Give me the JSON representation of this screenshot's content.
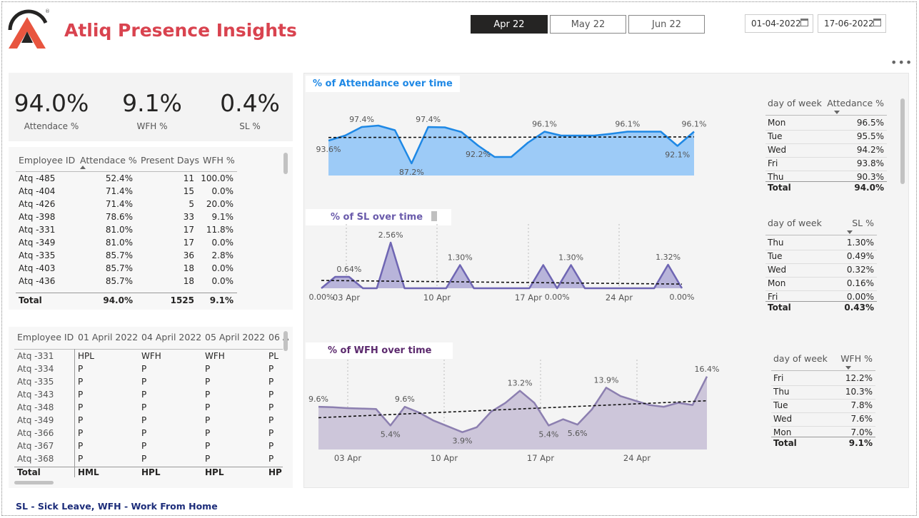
{
  "header": {
    "title": "Atliq Presence Insights"
  },
  "months": [
    {
      "label": "Apr 22",
      "active": true
    },
    {
      "label": "May 22",
      "active": false
    },
    {
      "label": "Jun 22",
      "active": false
    }
  ],
  "dates": {
    "start": "01-04-2022",
    "end": "17-06-2022"
  },
  "kpis": [
    {
      "value": "94.0%",
      "label": "Attendace %"
    },
    {
      "value": "9.1%",
      "label": "WFH %"
    },
    {
      "value": "0.4%",
      "label": "SL %"
    }
  ],
  "emp_table": {
    "headers": [
      "Employee ID",
      "Attendace %",
      "Present Days",
      "WFH %"
    ],
    "rows": [
      [
        "Atq -485",
        "52.4%",
        "11",
        "100.0%"
      ],
      [
        "Atq -404",
        "71.4%",
        "15",
        "0.0%"
      ],
      [
        "Atq -426",
        "71.4%",
        "5",
        "20.0%"
      ],
      [
        "Atq -398",
        "78.6%",
        "33",
        "9.1%"
      ],
      [
        "Atq -331",
        "81.0%",
        "17",
        "11.8%"
      ],
      [
        "Atq -349",
        "81.0%",
        "17",
        "0.0%"
      ],
      [
        "Atq -335",
        "85.7%",
        "36",
        "2.8%"
      ],
      [
        "Atq -403",
        "85.7%",
        "18",
        "0.0%"
      ],
      [
        "Atq -436",
        "85.7%",
        "18",
        "0.0%"
      ]
    ],
    "total": [
      "Total",
      "94.0%",
      "1525",
      "9.1%"
    ]
  },
  "matrix": {
    "headers": [
      "Employee ID",
      "01 April 2022",
      "04 April 2022",
      "05 April 2022",
      "06 A"
    ],
    "rows": [
      [
        "Atq -331",
        "HPL",
        "WFH",
        "WFH",
        "PL"
      ],
      [
        "Atq -334",
        "P",
        "P",
        "P",
        "P"
      ],
      [
        "Atq -335",
        "P",
        "P",
        "P",
        "P"
      ],
      [
        "Atq -343",
        "P",
        "P",
        "P",
        "P"
      ],
      [
        "Atq -348",
        "P",
        "P",
        "P",
        "P"
      ],
      [
        "Atq -349",
        "P",
        "P",
        "P",
        "P"
      ],
      [
        "Atq -366",
        "P",
        "P",
        "P",
        "P"
      ],
      [
        "Atq -367",
        "P",
        "P",
        "P",
        "P"
      ],
      [
        "Atq -368",
        "P",
        "P",
        "P",
        "P"
      ]
    ],
    "total": [
      "Total",
      "HML",
      "HPL",
      "HPL",
      "HP"
    ]
  },
  "charts": {
    "attendance": {
      "title": "% of Attendance over time",
      "color": "#1e88e5"
    },
    "sl": {
      "title": "% of SL over time",
      "color": "#6a5bab"
    },
    "wfh": {
      "title": "% of WFH over time",
      "color": "#5c2a6e"
    }
  },
  "chart_data": [
    {
      "type": "area",
      "title": "% of Attendance over time",
      "y": [
        93.6,
        95.0,
        97.4,
        97.8,
        96.5,
        87.2,
        97.4,
        97.3,
        96.0,
        92.2,
        89.0,
        89.0,
        93.0,
        96.1,
        95.0,
        95.0,
        95.0,
        95.5,
        96.1,
        96.1,
        96.1,
        92.1,
        96.1
      ],
      "labels": [
        {
          "i": 0,
          "text": "93.6%"
        },
        {
          "i": 2,
          "text": "97.4%"
        },
        {
          "i": 5,
          "text": "87.2%"
        },
        {
          "i": 6,
          "text": "97.4%"
        },
        {
          "i": 9,
          "text": "92.2%"
        },
        {
          "i": 13,
          "text": "96.1%"
        },
        {
          "i": 18,
          "text": "96.1%"
        },
        {
          "i": 21,
          "text": "92.1%"
        },
        {
          "i": 22,
          "text": "96.1%"
        }
      ],
      "ylim": [
        85,
        99
      ]
    },
    {
      "type": "area",
      "title": "% of SL over time",
      "x_ticks": [
        "03 Apr",
        "10 Apr",
        "17 Apr",
        "24 Apr"
      ],
      "y": [
        0.0,
        0.64,
        0.64,
        0.0,
        0.0,
        2.56,
        0.0,
        0.0,
        0.0,
        0.0,
        1.3,
        0.0,
        0.0,
        0.0,
        0.0,
        0.0,
        1.3,
        0.0,
        1.3,
        0.0,
        0.0,
        0.0,
        0.0,
        0.0,
        0.0,
        1.32,
        0.0
      ],
      "labels": [
        {
          "i": 0,
          "text": "0.00%"
        },
        {
          "i": 2,
          "text": "0.64%"
        },
        {
          "i": 5,
          "text": "2.56%"
        },
        {
          "i": 10,
          "text": "1.30%"
        },
        {
          "i": 17,
          "text": "0.00%"
        },
        {
          "i": 18,
          "text": "1.30%"
        },
        {
          "i": 25,
          "text": "1.32%"
        },
        {
          "i": 26,
          "text": "0.00%"
        }
      ],
      "ylim": [
        0,
        2.8
      ]
    },
    {
      "type": "area",
      "title": "% of WFH over time",
      "x_ticks": [
        "03 Apr",
        "10 Apr",
        "17 Apr",
        "24 Apr"
      ],
      "y": [
        9.6,
        9.5,
        9.3,
        9.2,
        9.1,
        5.4,
        9.6,
        8.3,
        6.5,
        5.2,
        3.9,
        5.0,
        8.5,
        10.5,
        13.2,
        10.5,
        5.4,
        6.8,
        5.6,
        9.0,
        13.9,
        12.0,
        11.0,
        10.0,
        9.6,
        10.5,
        10.0,
        16.4
      ],
      "labels": [
        {
          "i": 0,
          "text": "9.6%"
        },
        {
          "i": 5,
          "text": "5.4%"
        },
        {
          "i": 6,
          "text": "9.6%"
        },
        {
          "i": 10,
          "text": "3.9%"
        },
        {
          "i": 14,
          "text": "13.2%"
        },
        {
          "i": 16,
          "text": "5.4%"
        },
        {
          "i": 18,
          "text": "5.6%"
        },
        {
          "i": 20,
          "text": "13.9%"
        },
        {
          "i": 27,
          "text": "16.4%"
        }
      ],
      "ylim": [
        0,
        17
      ]
    }
  ],
  "dow_att": {
    "headers": [
      "day of week",
      "Attedance %"
    ],
    "rows": [
      [
        "Mon",
        "96.5%"
      ],
      [
        "Tue",
        "95.5%"
      ],
      [
        "Wed",
        "94.2%"
      ],
      [
        "Fri",
        "93.8%"
      ],
      [
        "Thu",
        "90.3%"
      ]
    ],
    "total": [
      "Total",
      "94.0%"
    ]
  },
  "dow_sl": {
    "headers": [
      "day of week",
      "SL %"
    ],
    "rows": [
      [
        "Thu",
        "1.30%"
      ],
      [
        "Tue",
        "0.49%"
      ],
      [
        "Wed",
        "0.32%"
      ],
      [
        "Mon",
        "0.16%"
      ],
      [
        "Fri",
        "0.00%"
      ]
    ],
    "total": [
      "Total",
      "0.43%"
    ]
  },
  "dow_wfh": {
    "headers": [
      "day of week",
      "WFH %"
    ],
    "rows": [
      [
        "Fri",
        "12.2%"
      ],
      [
        "Thu",
        "10.3%"
      ],
      [
        "Tue",
        "7.8%"
      ],
      [
        "Wed",
        "7.6%"
      ],
      [
        "Mon",
        "7.0%"
      ]
    ],
    "total": [
      "Total",
      "9.1%"
    ]
  },
  "footer": {
    "note": "SL - Sick Leave, WFH - Work From Home"
  },
  "icons": {
    "more": "more-options-icon",
    "calendar": "calendar-icon",
    "logo": "atliq-logo"
  }
}
